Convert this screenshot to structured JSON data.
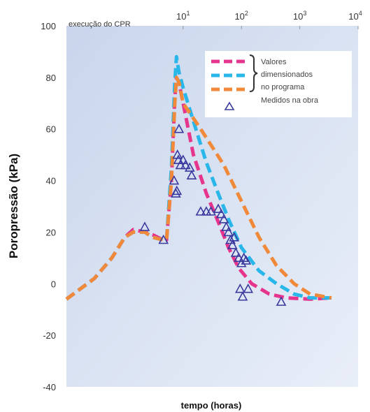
{
  "chart_data": {
    "type": "line",
    "ylabel": "Poropressão (kPa)",
    "xlabel": "tempo (horas)",
    "x_scale": "log",
    "xlim": [
      0.1,
      10000
    ],
    "ylim": [
      -40,
      100
    ],
    "y_ticks": [
      "-40",
      "-20",
      "0",
      "20",
      "40",
      "60",
      "80",
      "100"
    ],
    "x_top_ticks": [
      {
        "x": 10,
        "base": "10",
        "exp": "1"
      },
      {
        "x": 100,
        "base": "10",
        "exp": "2"
      },
      {
        "x": 1000,
        "base": "10",
        "exp": "3"
      },
      {
        "x": 10000,
        "base": "10",
        "exp": "4"
      }
    ],
    "annotation": "execução do CPR",
    "grid": false,
    "legend": {
      "placement": "top-right",
      "group_label_lines": [
        "Valores",
        "dimensionados",
        "no programa"
      ],
      "measured_label": "Medidos na obra",
      "colors": [
        "#e6358c",
        "#29b6e8",
        "#f0893a"
      ]
    },
    "series": [
      {
        "color": "#e6358c",
        "points": [
          [
            0.1,
            -6
          ],
          [
            0.3,
            2
          ],
          [
            0.6,
            10
          ],
          [
            1.0,
            18
          ],
          [
            1.4,
            21
          ],
          [
            2.2,
            20
          ],
          [
            3.0,
            19
          ],
          [
            4.5,
            17
          ],
          [
            5.2,
            17
          ],
          [
            6.3,
            40
          ],
          [
            7.2,
            72
          ],
          [
            7.7,
            80
          ],
          [
            8.5,
            78
          ],
          [
            10,
            70
          ],
          [
            15,
            50
          ],
          [
            25,
            35
          ],
          [
            40,
            24
          ],
          [
            60,
            14
          ],
          [
            90,
            6
          ],
          [
            150,
            0
          ],
          [
            300,
            -4
          ],
          [
            600,
            -5.5
          ],
          [
            1500,
            -6
          ],
          [
            3500,
            -5.5
          ]
        ]
      },
      {
        "color": "#29b6e8",
        "points": [
          [
            0.1,
            -6
          ],
          [
            0.3,
            2
          ],
          [
            0.6,
            10
          ],
          [
            1.0,
            18
          ],
          [
            1.4,
            20
          ],
          [
            2.2,
            20
          ],
          [
            3.0,
            18
          ],
          [
            4.5,
            17
          ],
          [
            5.2,
            17
          ],
          [
            6.3,
            45
          ],
          [
            7.2,
            78
          ],
          [
            7.7,
            88
          ],
          [
            8.5,
            82
          ],
          [
            10,
            76
          ],
          [
            15,
            63
          ],
          [
            25,
            47
          ],
          [
            40,
            35
          ],
          [
            60,
            25
          ],
          [
            100,
            14
          ],
          [
            200,
            5
          ],
          [
            400,
            0
          ],
          [
            800,
            -4
          ],
          [
            1500,
            -5.5
          ],
          [
            3500,
            -5.5
          ]
        ]
      },
      {
        "color": "#f0893a",
        "points": [
          [
            0.1,
            -6
          ],
          [
            0.3,
            2
          ],
          [
            0.6,
            10
          ],
          [
            1.0,
            18
          ],
          [
            1.4,
            20
          ],
          [
            2.2,
            20
          ],
          [
            3.0,
            18
          ],
          [
            4.5,
            17
          ],
          [
            5.2,
            17
          ],
          [
            6.3,
            40
          ],
          [
            7.2,
            70
          ],
          [
            7.7,
            80
          ],
          [
            8.5,
            78
          ],
          [
            10,
            70
          ],
          [
            20,
            60
          ],
          [
            50,
            46
          ],
          [
            100,
            32
          ],
          [
            200,
            18
          ],
          [
            400,
            7
          ],
          [
            800,
            0
          ],
          [
            1500,
            -4
          ],
          [
            3500,
            -5.5
          ]
        ]
      }
    ],
    "measured": {
      "color": "#3a3a9e",
      "points": [
        [
          2.2,
          22
        ],
        [
          4.6,
          17
        ],
        [
          7.0,
          40
        ],
        [
          7.5,
          35
        ],
        [
          7.8,
          36
        ],
        [
          8.0,
          50
        ],
        [
          8.3,
          48
        ],
        [
          8.5,
          60
        ],
        [
          9.0,
          46
        ],
        [
          10,
          48
        ],
        [
          11,
          46
        ],
        [
          13,
          45
        ],
        [
          14,
          42
        ],
        [
          20,
          28
        ],
        [
          25,
          28
        ],
        [
          30,
          28
        ],
        [
          40,
          29
        ],
        [
          45,
          27
        ],
        [
          50,
          25
        ],
        [
          55,
          22
        ],
        [
          60,
          20
        ],
        [
          65,
          17
        ],
        [
          70,
          15
        ],
        [
          75,
          18
        ],
        [
          80,
          12
        ],
        [
          90,
          10
        ],
        [
          100,
          8
        ],
        [
          110,
          10
        ],
        [
          120,
          9
        ],
        [
          95,
          -2
        ],
        [
          105,
          -5
        ],
        [
          130,
          -2
        ],
        [
          480,
          -7
        ]
      ]
    }
  }
}
